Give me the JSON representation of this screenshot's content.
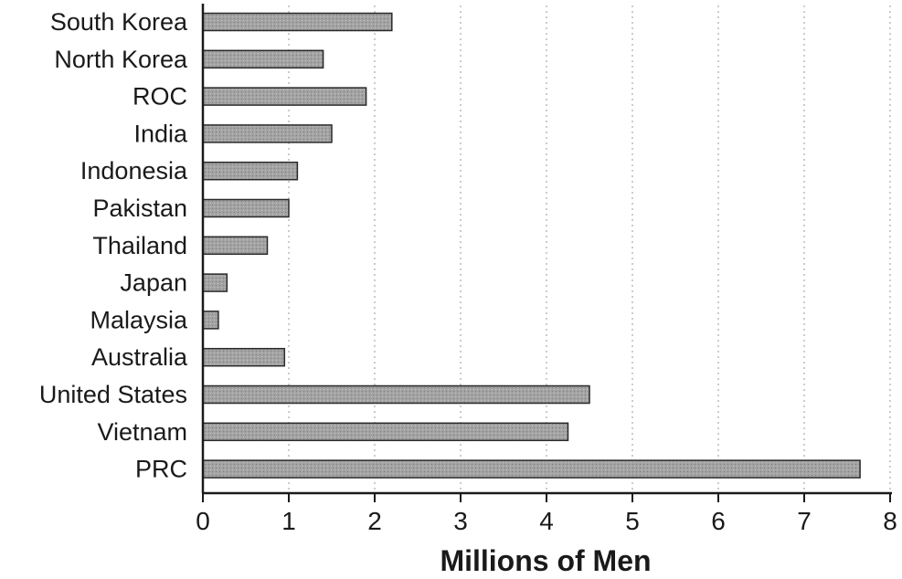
{
  "chart_data": {
    "type": "bar",
    "orientation": "horizontal",
    "categories": [
      "South Korea",
      "North Korea",
      "ROC",
      "India",
      "Indonesia",
      "Pakistan",
      "Thailand",
      "Japan",
      "Malaysia",
      "Australia",
      "United States",
      "Vietnam",
      "PRC"
    ],
    "values": [
      2.2,
      1.4,
      1.9,
      1.5,
      1.1,
      1.0,
      0.75,
      0.28,
      0.18,
      0.95,
      4.5,
      4.25,
      7.65
    ],
    "xlabel": "Millions of Men",
    "ylabel": "",
    "xlim": [
      0,
      8
    ],
    "xticks": [
      "0",
      "1",
      "2",
      "3",
      "4",
      "5",
      "6",
      "7",
      "8"
    ],
    "grid": "vertical dotted",
    "bar_color": "#9c9c9c"
  }
}
